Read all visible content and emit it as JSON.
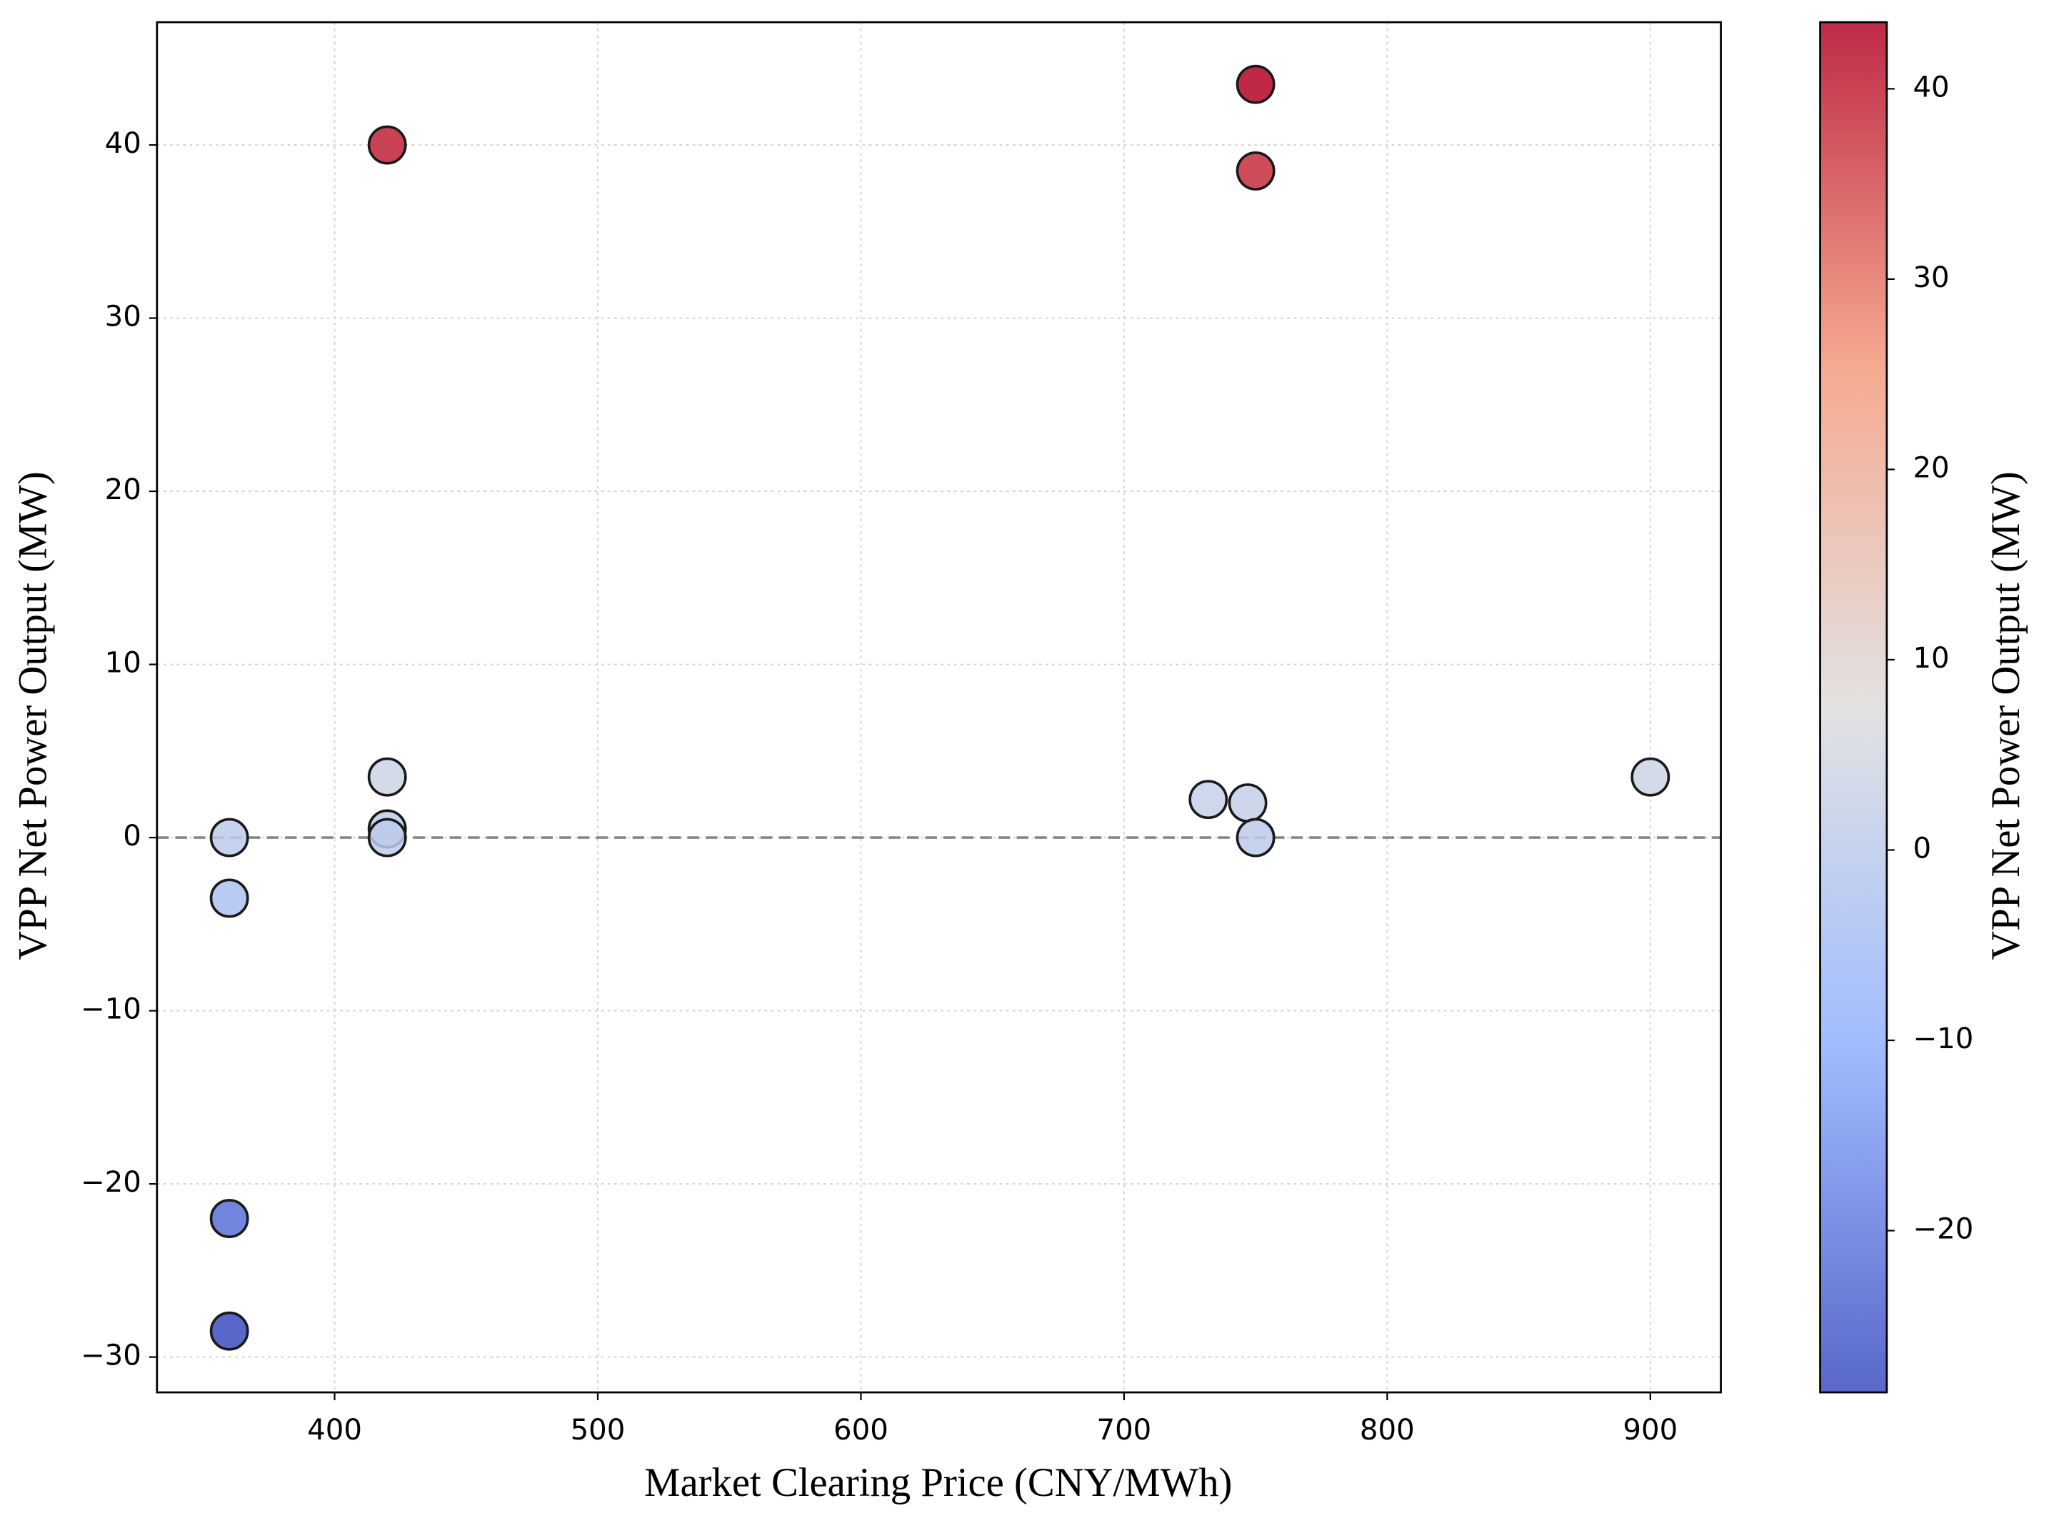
{
  "chart_data": {
    "type": "scatter",
    "xlabel": "Market Clearing Price (CNY/MWh)",
    "ylabel": "VPP Net Power Output (MW)",
    "x": [
      360,
      360,
      360,
      360,
      420,
      420,
      420,
      420,
      732,
      747,
      750,
      750,
      750,
      900
    ],
    "values": [
      0,
      -3.5,
      -22,
      -28.5,
      40,
      3.5,
      0.5,
      0,
      2.2,
      2,
      0,
      43.5,
      38.5,
      3.5
    ],
    "xlim": [
      332.5,
      926.8
    ],
    "xticks": [
      400,
      500,
      600,
      700,
      800,
      900
    ],
    "ylim": [
      -32.04,
      47.09
    ],
    "yticks": [
      {
        "value": -30,
        "label": "−30"
      },
      {
        "value": -20,
        "label": "−20"
      },
      {
        "value": -10,
        "label": "−10"
      },
      0,
      10,
      20,
      30,
      40
    ],
    "grid": true,
    "reference_line": 0,
    "colormap": [
      "#3b4cc0",
      "#8db0fe",
      "#dddddd",
      "#f49a7b",
      "#b40426"
    ],
    "colorbar": {
      "label": "VPP Net Power Output (MW)",
      "lim": [
        -28.5,
        43.5
      ],
      "ticks": [
        {
          "value": -20,
          "label": "−20"
        },
        {
          "value": -10,
          "label": "−10"
        },
        0,
        10,
        20,
        30,
        40
      ]
    }
  }
}
